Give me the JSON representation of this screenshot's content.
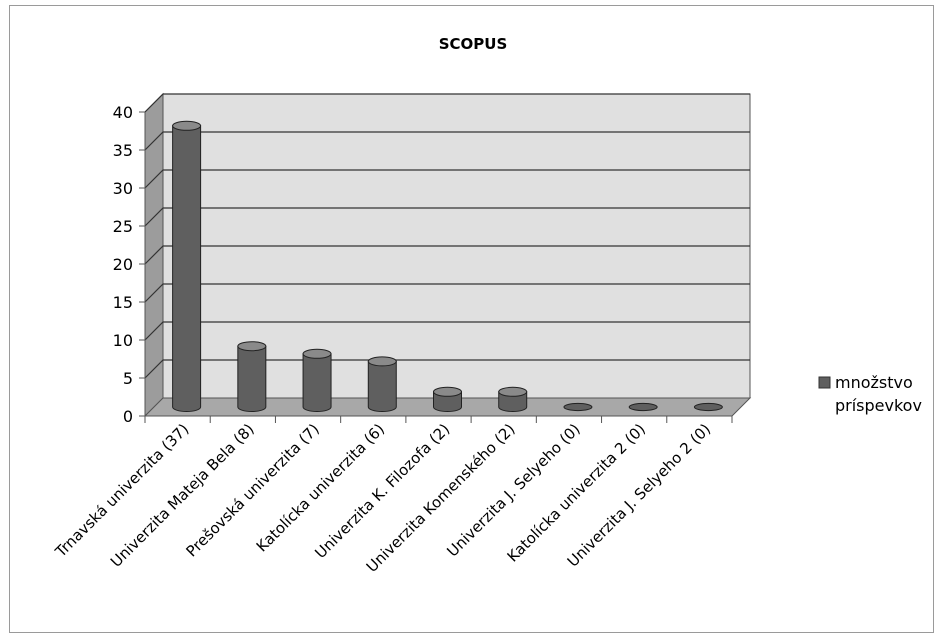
{
  "chart_data": {
    "type": "bar",
    "title": "SCOPUS",
    "categories": [
      "Trnavská univerzita (37)",
      "Univerzita Mateja Bela (8)",
      "Prešovská univerzita (7)",
      "Katolícka univerzita (6)",
      "Univerzita K. Filozofa (2)",
      "Univerzita Komenského (2)",
      "Univerzita J. Selyeho (0)",
      "Katolícka univerzita 2 (0)",
      "Univerzita J. Selyeho 2 (0)"
    ],
    "series": [
      {
        "name": "množstvo príspevkov",
        "values": [
          37,
          8,
          7,
          6,
          2,
          2,
          0,
          0,
          0
        ]
      }
    ],
    "ylim": [
      0,
      40
    ],
    "yticks": [
      "0",
      "5",
      "10",
      "15",
      "20",
      "25",
      "30",
      "35",
      "40"
    ],
    "legend_position": "right",
    "grid": true,
    "bar_color": "#5f5f5f",
    "wall_color": "#e0e0e0",
    "side_wall_color": "#9c9c9c",
    "floor_color": "#a8a8a8"
  }
}
